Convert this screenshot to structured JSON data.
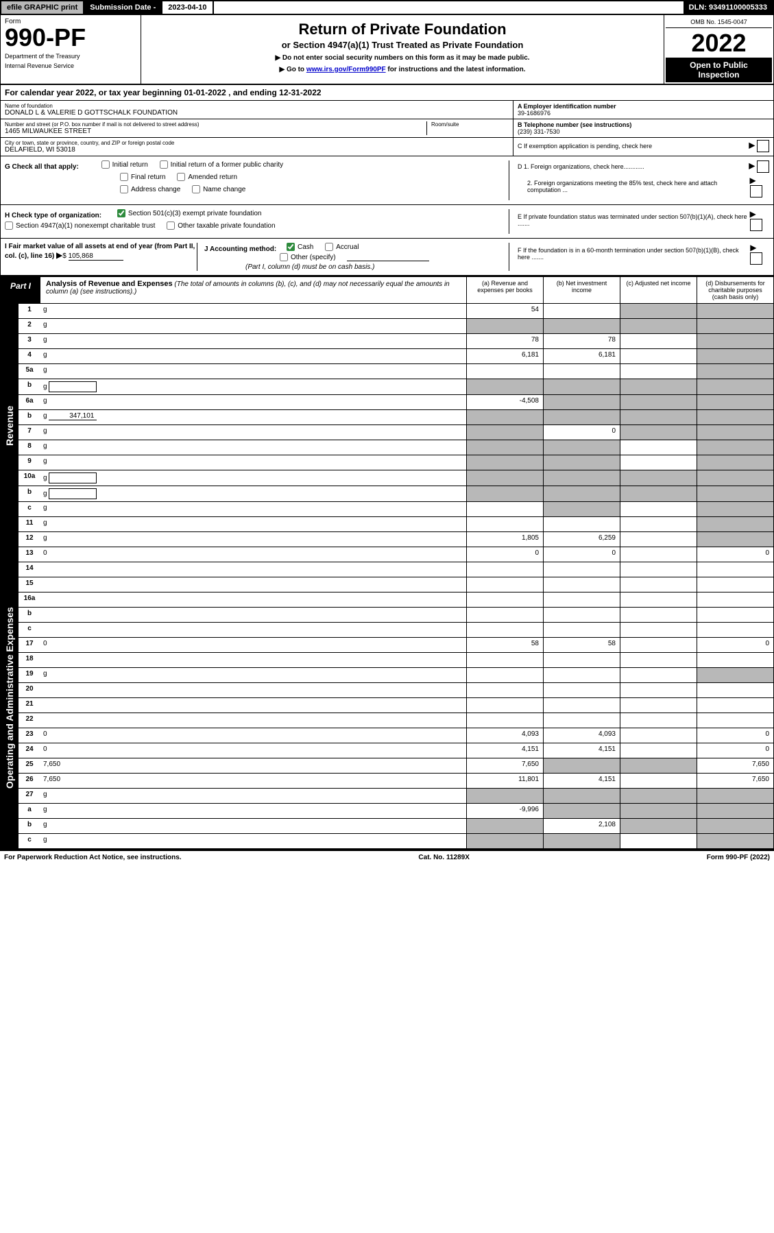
{
  "topbar": {
    "efile": "efile GRAPHIC print",
    "sub_label": "Submission Date - ",
    "sub_date": "2023-04-10",
    "dln": "DLN: 93491100005333"
  },
  "header": {
    "form_label": "Form",
    "form_number": "990-PF",
    "dept1": "Department of the Treasury",
    "dept2": "Internal Revenue Service",
    "title": "Return of Private Foundation",
    "subtitle": "or Section 4947(a)(1) Trust Treated as Private Foundation",
    "note1": "▶ Do not enter social security numbers on this form as it may be made public.",
    "note2_pre": "▶ Go to ",
    "note2_link": "www.irs.gov/Form990PF",
    "note2_post": " for instructions and the latest information.",
    "omb": "OMB No. 1545-0047",
    "year": "2022",
    "open": "Open to Public Inspection"
  },
  "calyear": "For calendar year 2022, or tax year beginning 01-01-2022                          , and ending 12-31-2022",
  "entity": {
    "name_label": "Name of foundation",
    "name": "DONALD L & VALERIE D GOTTSCHALK FOUNDATION",
    "addr_label": "Number and street (or P.O. box number if mail is not delivered to street address)",
    "addr": "1465 MILWAUKEE STREET",
    "room_label": "Room/suite",
    "city_label": "City or town, state or province, country, and ZIP or foreign postal code",
    "city": "DELAFIELD, WI  53018",
    "ein_label": "A Employer identification number",
    "ein": "39-1686976",
    "tel_label": "B Telephone number (see instructions)",
    "tel": "(239) 331-7530",
    "c_label": "C If exemption application is pending, check here"
  },
  "checks": {
    "g_label": "G Check all that apply:",
    "g1": "Initial return",
    "g2": "Initial return of a former public charity",
    "g3": "Final return",
    "g4": "Amended return",
    "g5": "Address change",
    "g6": "Name change",
    "h_label": "H Check type of organization:",
    "h1": "Section 501(c)(3) exempt private foundation",
    "h2": "Section 4947(a)(1) nonexempt charitable trust",
    "h3": "Other taxable private foundation",
    "i_label": "I Fair market value of all assets at end of year (from Part II, col. (c), line 16)",
    "i_val": "105,868",
    "j_label": "J Accounting method:",
    "j1": "Cash",
    "j2": "Accrual",
    "j3": "Other (specify)",
    "j_note": "(Part I, column (d) must be on cash basis.)",
    "d1": "D 1. Foreign organizations, check here............",
    "d2": "2. Foreign organizations meeting the 85% test, check here and attach computation ...",
    "e_label": "E  If private foundation status was terminated under section 507(b)(1)(A), check here .......",
    "f_label": "F  If the foundation is in a 60-month termination under section 507(b)(1)(B), check here .......",
    "arrow": "▶"
  },
  "part1": {
    "tab": "Part I",
    "title": "Analysis of Revenue and Expenses",
    "note": " (The total of amounts in columns (b), (c), and (d) may not necessarily equal the amounts in column (a) (see instructions).)",
    "cols": {
      "a": "(a) Revenue and expenses per books",
      "b": "(b) Net investment income",
      "c": "(c) Adjusted net income",
      "d": "(d) Disbursements for charitable purposes (cash basis only)"
    }
  },
  "sections": {
    "revenue": "Revenue",
    "opex": "Operating and Administrative Expenses"
  },
  "lines": [
    {
      "n": "1",
      "d": "g",
      "a": "54",
      "b": "",
      "c": "g"
    },
    {
      "n": "2",
      "d": "g",
      "a": "g",
      "b": "g",
      "c": "g",
      "chk": true
    },
    {
      "n": "3",
      "d": "g",
      "a": "78",
      "b": "78",
      "c": ""
    },
    {
      "n": "4",
      "d": "g",
      "a": "6,181",
      "b": "6,181",
      "c": ""
    },
    {
      "n": "5a",
      "d": "g",
      "a": "",
      "b": "",
      "c": ""
    },
    {
      "n": "b",
      "d": "g",
      "a": "g",
      "b": "g",
      "c": "g",
      "box": true
    },
    {
      "n": "6a",
      "d": "g",
      "a": "-4,508",
      "b": "g",
      "c": "g"
    },
    {
      "n": "b",
      "d": "g",
      "a": "g",
      "b": "g",
      "c": "g",
      "fill": "347,101"
    },
    {
      "n": "7",
      "d": "g",
      "a": "g",
      "b": "0",
      "c": "g"
    },
    {
      "n": "8",
      "d": "g",
      "a": "g",
      "b": "g",
      "c": ""
    },
    {
      "n": "9",
      "d": "g",
      "a": "g",
      "b": "g",
      "c": ""
    },
    {
      "n": "10a",
      "d": "g",
      "a": "g",
      "b": "g",
      "c": "g",
      "box": true
    },
    {
      "n": "b",
      "d": "g",
      "a": "g",
      "b": "g",
      "c": "g",
      "box": true
    },
    {
      "n": "c",
      "d": "g",
      "a": "",
      "b": "g",
      "c": ""
    },
    {
      "n": "11",
      "d": "g",
      "a": "",
      "b": "",
      "c": ""
    },
    {
      "n": "12",
      "d": "g",
      "a": "1,805",
      "b": "6,259",
      "c": ""
    }
  ],
  "oplines": [
    {
      "n": "13",
      "d": "0",
      "a": "0",
      "b": "0",
      "c": ""
    },
    {
      "n": "14",
      "d": "",
      "a": "",
      "b": "",
      "c": ""
    },
    {
      "n": "15",
      "d": "",
      "a": "",
      "b": "",
      "c": ""
    },
    {
      "n": "16a",
      "d": "",
      "a": "",
      "b": "",
      "c": ""
    },
    {
      "n": "b",
      "d": "",
      "a": "",
      "b": "",
      "c": ""
    },
    {
      "n": "c",
      "d": "",
      "a": "",
      "b": "",
      "c": ""
    },
    {
      "n": "17",
      "d": "0",
      "a": "58",
      "b": "58",
      "c": ""
    },
    {
      "n": "18",
      "d": "",
      "a": "",
      "b": "",
      "c": ""
    },
    {
      "n": "19",
      "d": "g",
      "a": "",
      "b": "",
      "c": ""
    },
    {
      "n": "20",
      "d": "",
      "a": "",
      "b": "",
      "c": ""
    },
    {
      "n": "21",
      "d": "",
      "a": "",
      "b": "",
      "c": ""
    },
    {
      "n": "22",
      "d": "",
      "a": "",
      "b": "",
      "c": ""
    },
    {
      "n": "23",
      "d": "0",
      "a": "4,093",
      "b": "4,093",
      "c": ""
    },
    {
      "n": "24",
      "d": "0",
      "a": "4,151",
      "b": "4,151",
      "c": ""
    },
    {
      "n": "25",
      "d": "7,650",
      "a": "7,650",
      "b": "g",
      "c": "g"
    },
    {
      "n": "26",
      "d": "7,650",
      "a": "11,801",
      "b": "4,151",
      "c": ""
    },
    {
      "n": "27",
      "d": "g",
      "a": "g",
      "b": "g",
      "c": "g"
    },
    {
      "n": "a",
      "d": "g",
      "a": "-9,996",
      "b": "g",
      "c": "g"
    },
    {
      "n": "b",
      "d": "g",
      "a": "g",
      "b": "2,108",
      "c": "g"
    },
    {
      "n": "c",
      "d": "g",
      "a": "g",
      "b": "g",
      "c": ""
    }
  ],
  "footer": {
    "left": "For Paperwork Reduction Act Notice, see instructions.",
    "mid": "Cat. No. 11289X",
    "right": "Form 990-PF (2022)"
  }
}
